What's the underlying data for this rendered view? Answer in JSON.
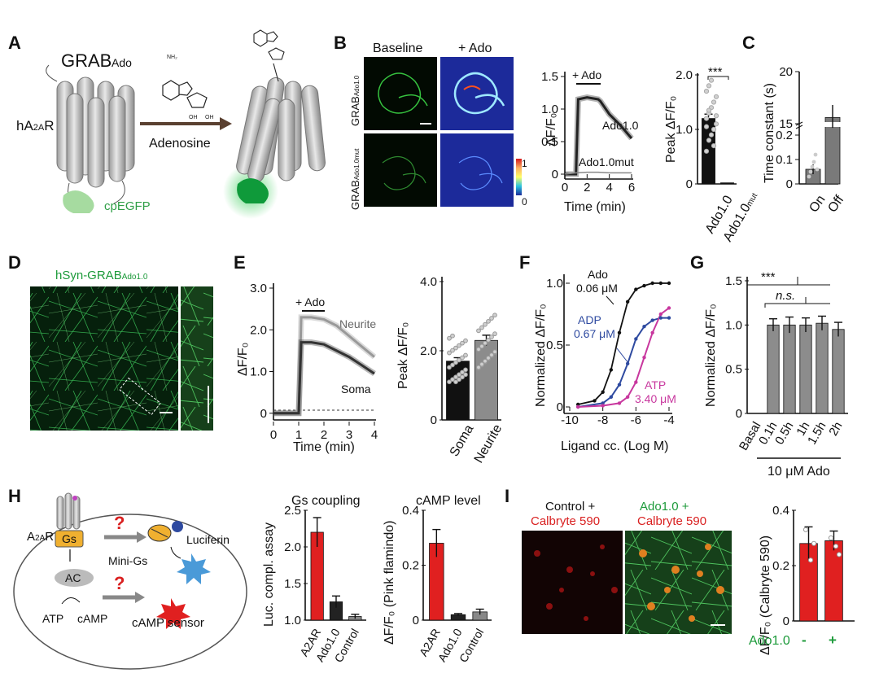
{
  "panels": {
    "A": "A",
    "B": "B",
    "C": "C",
    "D": "D",
    "E": "E",
    "F": "F",
    "G": "G",
    "H": "H",
    "I": "I"
  },
  "A": {
    "sensor": "GRAB",
    "sensor_sub": "Ado",
    "receptor": "hA",
    "receptor_sub": "2A",
    "receptor_end": "R",
    "arrow": "Adenosine",
    "fp": "cpEGFP"
  },
  "B": {
    "col1": "Baseline",
    "col2": "+ Ado",
    "row1": "GRAB",
    "row1_sub": "Ado1.0",
    "row2": "GRAB",
    "row2_sub": "Ado1.0mut",
    "cb_max": "1",
    "cb_min": "0",
    "stim": "+ Ado",
    "ylabel": "ΔF/F₀",
    "xlabel": "Time (min)",
    "trace1": "Ado1.0",
    "trace2": "Ado1.0mut",
    "bar_ylabel": "Peak ΔF/F₀",
    "sig": "***",
    "bar_cat1": "Ado1.0",
    "bar_cat2": "Ado1.0",
    "bar_cat2_sub": "mut"
  },
  "C": {
    "ylabel": "Time constant (s)",
    "cat1": "On",
    "cat2": "Off"
  },
  "D": {
    "title": "hSyn-GRAB",
    "title_sub": "Ado1.0"
  },
  "E": {
    "stim": "+ Ado",
    "ylabel": "ΔF/F₀",
    "xlabel": "Time (min)",
    "trace1": "Neurite",
    "trace2": "Soma",
    "bar_ylabel": "Peak ΔF/F₀",
    "cat1": "Soma",
    "cat2": "Neurite"
  },
  "F": {
    "ylabel": "Normalized ΔF/F₀",
    "xlabel": "Ligand cc. (Log M)",
    "l1a": "Ado",
    "l1b": "0.06 μM",
    "l2a": "ADP",
    "l2b": "0.67 μM",
    "l3a": "ATP",
    "l3b": "3.40 μM"
  },
  "G": {
    "ylabel": "Normalized ΔF/F₀",
    "sig1": "***",
    "sig2": "n.s.",
    "group": "10 μM Ado"
  },
  "H": {
    "receptor": "A",
    "receptor_sub": "2A",
    "receptor_end": "R",
    "gs": "Gs",
    "ac": "AC",
    "atp": "ATP",
    "camp": "cAMP",
    "minigs": "Mini-Gs",
    "luciferin": "Luciferin",
    "sensor": "cAMP sensor",
    "q": "?",
    "title1": "Gs coupling",
    "ylabel1": "Luc. compl. assay",
    "title2": "cAMP level",
    "ylabel2": "ΔF/F₀ (Pink flamindo)"
  },
  "I": {
    "img1a": "Control +",
    "img1b": "Calbryte 590",
    "img2a": "Ado1.0 +",
    "img2b": "Calbryte 590",
    "ylabel": "ΔF/F₀ (Calbryte 590)",
    "rowlabel": "Ado1.0",
    "minus": "-",
    "plus": "+"
  },
  "chart_data": [
    {
      "panel": "B",
      "type": "line",
      "title": "",
      "xlabel": "Time (min)",
      "ylabel": "ΔF/F₀",
      "xlim": [
        0,
        6
      ],
      "ylim": [
        0,
        1.5
      ],
      "xticks": [
        "0",
        "2",
        "4",
        "6"
      ],
      "yticks": [
        "0",
        "0.5",
        "1.0",
        "1.5"
      ],
      "series": [
        {
          "name": "Ado1.0",
          "x": [
            0,
            1,
            1.2,
            2,
            3,
            3.2,
            4,
            5,
            6
          ],
          "y": [
            0,
            0,
            1.15,
            1.18,
            1.15,
            1.12,
            0.92,
            0.75,
            0.55
          ]
        },
        {
          "name": "Ado1.0mut",
          "x": [
            0,
            1,
            2,
            3,
            4,
            5,
            6
          ],
          "y": [
            0,
            0.02,
            0.03,
            0.03,
            0.02,
            0.02,
            0.02
          ]
        }
      ]
    },
    {
      "panel": "B",
      "type": "bar",
      "title": "",
      "xlabel": "",
      "ylabel": "Peak ΔF/F₀",
      "ylim": [
        0,
        2.0
      ],
      "yticks": [
        "0",
        "1.0",
        "2.0"
      ],
      "categories": [
        "Ado1.0",
        "Ado1.0mut"
      ],
      "values": [
        1.2,
        0.02
      ]
    },
    {
      "panel": "C",
      "type": "bar",
      "title": "",
      "ylabel": "Time constant (s)",
      "yticks": [
        "0",
        "0.1",
        "0.2",
        "15",
        "20"
      ],
      "categories": [
        "On",
        "Off"
      ],
      "values": [
        0.06,
        15.6
      ]
    },
    {
      "panel": "E",
      "type": "line",
      "title": "",
      "xlabel": "Time (min)",
      "ylabel": "ΔF/F₀",
      "xlim": [
        0,
        4
      ],
      "ylim": [
        -0.2,
        3.0
      ],
      "xticks": [
        "0",
        "1",
        "2",
        "3",
        "4"
      ],
      "yticks": [
        "0",
        "1.0",
        "2.0",
        "3.0"
      ],
      "series": [
        {
          "name": "Neurite",
          "x": [
            0,
            1,
            1.1,
            1.5,
            2,
            2.5,
            3,
            3.5,
            4
          ],
          "y": [
            0,
            0,
            2.3,
            2.3,
            2.25,
            2.1,
            1.85,
            1.6,
            1.35
          ]
        },
        {
          "name": "Soma",
          "x": [
            0,
            1,
            1.1,
            1.5,
            2,
            2.5,
            3,
            3.5,
            4
          ],
          "y": [
            0,
            0,
            1.7,
            1.7,
            1.65,
            1.5,
            1.35,
            1.15,
            0.95
          ]
        }
      ]
    },
    {
      "panel": "E",
      "type": "bar",
      "title": "",
      "ylabel": "Peak ΔF/F₀",
      "ylim": [
        0,
        4.0
      ],
      "yticks": [
        "0",
        "2.0",
        "4.0"
      ],
      "categories": [
        "Soma",
        "Neurite"
      ],
      "values": [
        1.7,
        2.3
      ]
    },
    {
      "panel": "F",
      "type": "line",
      "title": "",
      "xlabel": "Ligand cc. (Log M)",
      "ylabel": "Normalized ΔF/F₀",
      "xlim": [
        -10,
        -4
      ],
      "ylim": [
        0,
        1.0
      ],
      "xticks": [
        "-10",
        "-8",
        "-6",
        "-4"
      ],
      "yticks": [
        "0",
        "0.5",
        "1.0"
      ],
      "series": [
        {
          "name": "Ado",
          "x": [
            -9.5,
            -8.5,
            -8,
            -7.5,
            -7,
            -6.5,
            -6,
            -5.5,
            -5,
            -4.5,
            -4
          ],
          "y": [
            0.02,
            0.05,
            0.12,
            0.3,
            0.6,
            0.85,
            0.95,
            0.98,
            1.0,
            1.0,
            1.0
          ]
        },
        {
          "name": "ADP",
          "x": [
            -9.5,
            -8,
            -7.5,
            -7,
            -6.5,
            -6,
            -5.5,
            -5,
            -4.5,
            -4
          ],
          "y": [
            0,
            0.03,
            0.08,
            0.18,
            0.35,
            0.55,
            0.65,
            0.7,
            0.72,
            0.72
          ]
        },
        {
          "name": "ATP",
          "x": [
            -9.5,
            -8,
            -7,
            -6.5,
            -6,
            -5.5,
            -5,
            -4.5,
            -4
          ],
          "y": [
            0,
            0.01,
            0.03,
            0.08,
            0.2,
            0.4,
            0.6,
            0.75,
            0.8
          ]
        }
      ]
    },
    {
      "panel": "G",
      "type": "bar",
      "title": "",
      "ylabel": "Normalized ΔF/F₀",
      "ylim": [
        0,
        1.5
      ],
      "yticks": [
        "0",
        "0.5",
        "1.0",
        "1.5"
      ],
      "categories": [
        "Basal",
        "0.1h",
        "0.5h",
        "1h",
        "1.5h",
        "2h"
      ],
      "values": [
        0,
        1.0,
        1.0,
        1.0,
        1.02,
        0.95
      ]
    },
    {
      "panel": "H",
      "type": "bar",
      "title": "Gs coupling",
      "ylabel": "Luc. compl. assay",
      "ylim": [
        1.0,
        2.5
      ],
      "yticks": [
        "1.0",
        "1.5",
        "2.0",
        "2.5"
      ],
      "categories": [
        "A2AR",
        "Ado1.0",
        "Control"
      ],
      "values": [
        2.2,
        1.25,
        1.05
      ]
    },
    {
      "panel": "H",
      "type": "bar",
      "title": "cAMP level",
      "ylabel": "ΔF/F₀ (Pink flamindo)",
      "ylim": [
        0,
        0.4
      ],
      "yticks": [
        "0",
        "0.2",
        "0.4"
      ],
      "categories": [
        "A2AR",
        "Ado1.0",
        "Control"
      ],
      "values": [
        0.28,
        0.02,
        0.03
      ]
    },
    {
      "panel": "I",
      "type": "bar",
      "title": "",
      "ylabel": "ΔF/F₀ (Calbryte 590)",
      "ylim": [
        0,
        0.4
      ],
      "yticks": [
        "0",
        "0.2",
        "0.4"
      ],
      "categories": [
        "-",
        "+"
      ],
      "values": [
        0.28,
        0.29
      ]
    }
  ]
}
